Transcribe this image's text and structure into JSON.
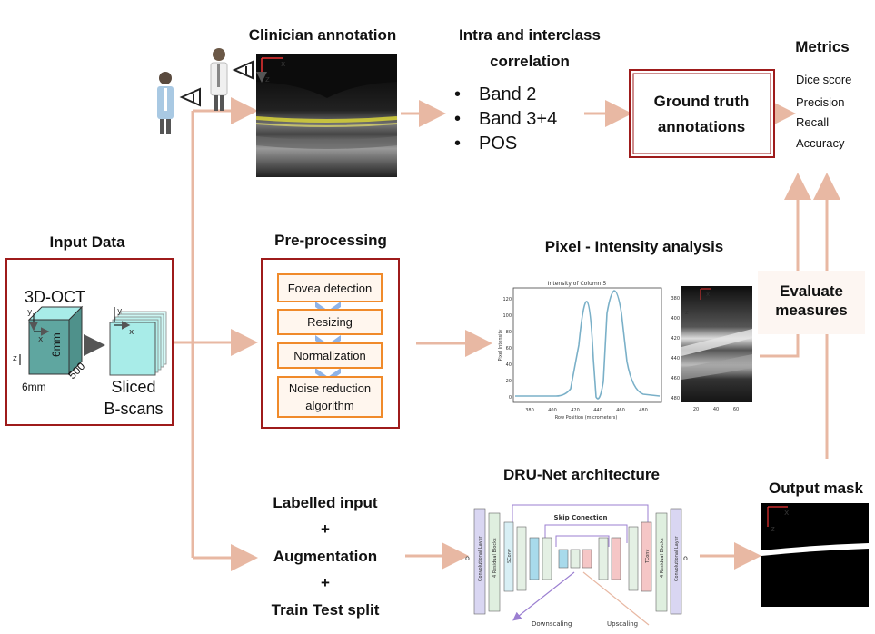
{
  "headings": {
    "clinician": "Clinician annotation",
    "correlation_line1": "Intra and interclass",
    "correlation_line2": "correlation",
    "metrics": "Metrics",
    "input": "Input Data",
    "preproc": "Pre-processing",
    "pixel": "Pixel - Intensity analysis",
    "evaluate_line1": "Evaluate",
    "evaluate_line2": "measures",
    "drunet": "DRU-Net architecture",
    "output": "Output mask"
  },
  "bands": [
    "Band 2",
    "Band 3+4",
    "POS"
  ],
  "ground_truth": {
    "line1": "Ground truth",
    "line2": "annotations"
  },
  "metrics_list": [
    "Dice score",
    "Precision",
    "Recall",
    "Accuracy"
  ],
  "input_data": {
    "label": "3D-OCT",
    "dim_x": "6mm",
    "dim_depth": "500",
    "dim_z": "6mm",
    "axis_y": "y",
    "axis_x": "x",
    "axis_z": "z",
    "sliced_line1": "Sliced",
    "sliced_line2": "B-scans"
  },
  "preprocessing_steps": [
    {
      "line1": "Fovea detection",
      "line2": ""
    },
    {
      "line1": "Resizing",
      "line2": ""
    },
    {
      "line1": "Normalization",
      "line2": ""
    },
    {
      "line1": "Noise reduction",
      "line2": "algorithm"
    }
  ],
  "training_pipeline": [
    "Labelled input",
    "+",
    "Augmentation",
    "+",
    "Train Test split"
  ],
  "network": {
    "skip_label": "Skip Conection",
    "down_label": "Downscaling",
    "up_label": "Upscaling",
    "conv_label": "Convolutional Layer",
    "res_label": "4 Residual Blocks",
    "sconv_label": "SConv",
    "tconv_label": "TConv"
  },
  "intensity_plot": {
    "title": "Intensity of Column 5",
    "xlabel": "Row Position (micrometers)",
    "ylabel": "Pixel Intensity",
    "xticks": [
      "380",
      "400",
      "420",
      "440",
      "460",
      "480"
    ],
    "yticks": [
      "0",
      "20",
      "40",
      "60",
      "80",
      "100",
      "120"
    ]
  },
  "bscan_crop": {
    "yticks": [
      "380",
      "400",
      "420",
      "440",
      "460",
      "480"
    ],
    "xticks": [
      "20",
      "40",
      "60"
    ],
    "axis_x": "x",
    "axis_z": "z"
  },
  "output_mask": {
    "axis_x": "x",
    "axis_z": "z"
  },
  "scan_axes": {
    "axis_x": "x",
    "axis_z": "z"
  },
  "colors": {
    "arrow": "#e8b8a3",
    "frame_red": "#9e1b1b",
    "preproc_border": "#e87722",
    "step_border": "#f08a2a",
    "step_fill": "#fff6ee",
    "cube_dark": "#5fa6a0",
    "cube_light": "#a8ece8"
  }
}
